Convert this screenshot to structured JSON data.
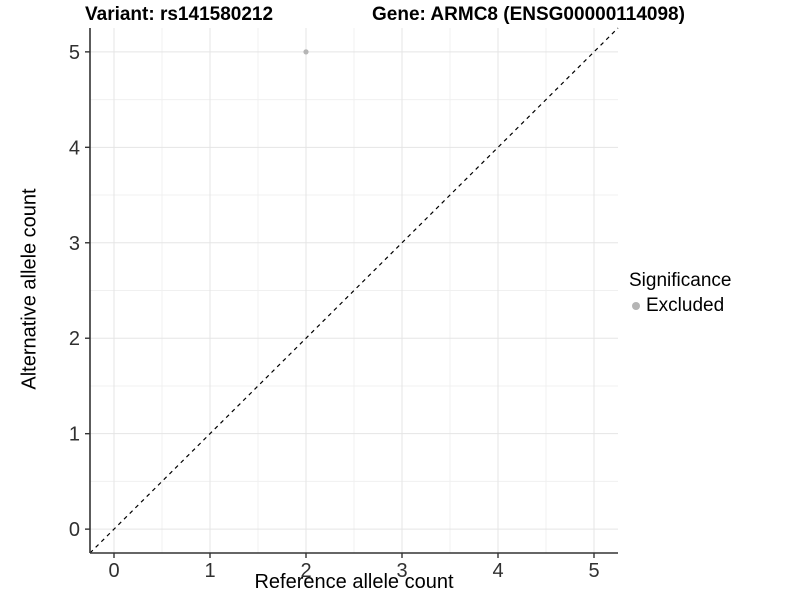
{
  "chart_data": {
    "type": "scatter",
    "title_left": "Variant: rs141580212",
    "title_right": "Gene: ARMC8 (ENSG00000114098)",
    "xlabel": "Reference allele count",
    "ylabel": "Alternative allele count",
    "xlim": [
      -0.25,
      5.25
    ],
    "ylim": [
      -0.25,
      5.25
    ],
    "x_ticks": [
      0,
      1,
      2,
      3,
      4,
      5
    ],
    "y_ticks": [
      0,
      1,
      2,
      3,
      4,
      5
    ],
    "x_minor_ticks": [
      0.5,
      1.5,
      2.5,
      3.5,
      4.5
    ],
    "y_minor_ticks": [
      0.5,
      1.5,
      2.5,
      3.5,
      4.5
    ],
    "grid": true,
    "reference_line": {
      "kind": "identity",
      "x1": -0.25,
      "y1": -0.25,
      "x2": 5.25,
      "y2": 5.25,
      "style": "dashed",
      "color": "#000000"
    },
    "series": [
      {
        "name": "Excluded",
        "color": "#b5b5b5",
        "points": [
          {
            "x": 2,
            "y": 5
          }
        ]
      }
    ],
    "legend": {
      "title": "Significance",
      "position": "right",
      "items": [
        {
          "label": "Excluded",
          "color": "#b5b5b5"
        }
      ]
    },
    "colors": {
      "background": "#ffffff",
      "grid_major": "#e5e5e5",
      "grid_minor": "#f0f0f0",
      "axis_line": "#333333",
      "tick_label": "#303030",
      "point": "#b5b5b5"
    }
  }
}
